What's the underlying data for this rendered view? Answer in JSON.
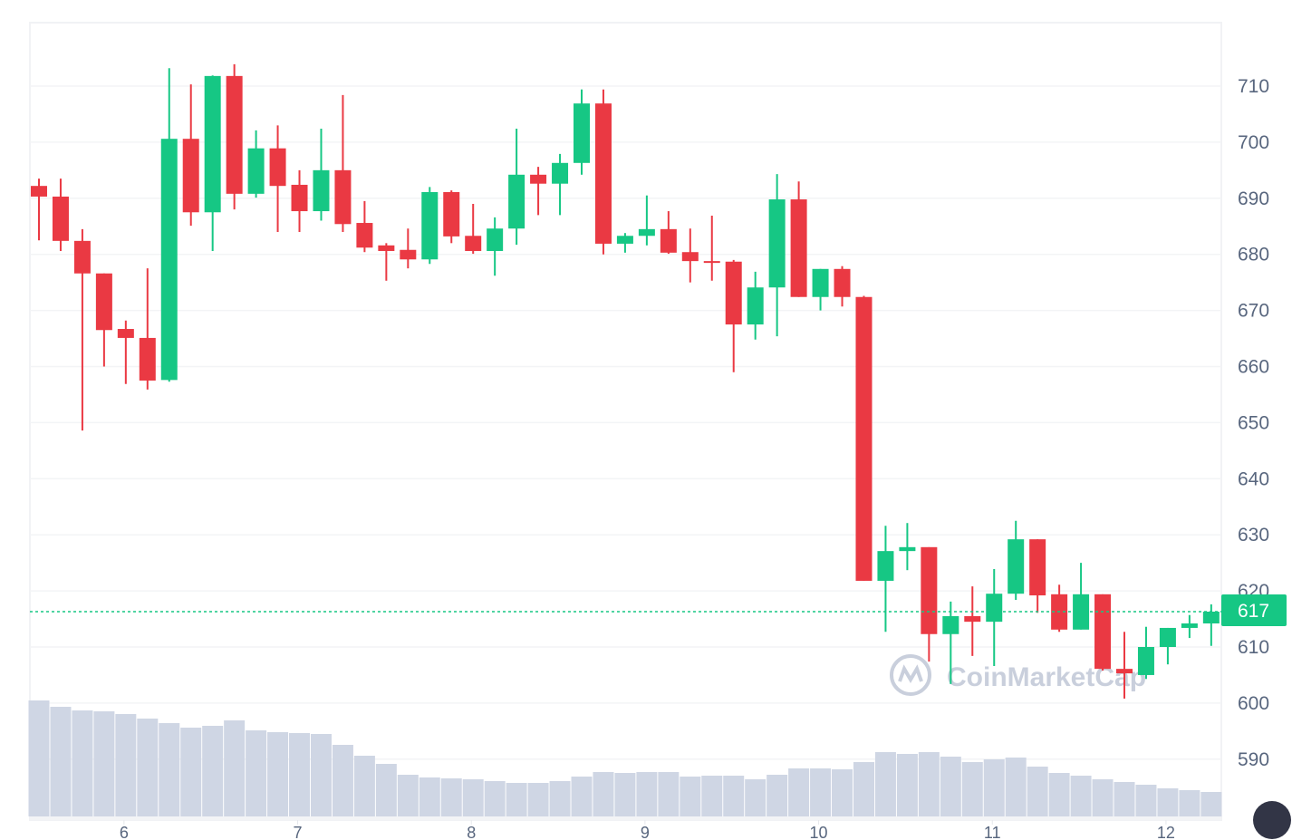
{
  "chart_data": {
    "type": "candlestick",
    "title": "",
    "xlabel": "",
    "ylabel": "",
    "ylim": [
      583,
      720
    ],
    "y_ticks": [
      590,
      600,
      610,
      620,
      630,
      640,
      650,
      660,
      670,
      680,
      690,
      700,
      710
    ],
    "x_tick_labels": [
      "6",
      "7",
      "8",
      "9",
      "10",
      "11",
      "12"
    ],
    "x_tick_candle_index": [
      4,
      12,
      20,
      28,
      36,
      44,
      52
    ],
    "current_price": 617,
    "current_price_label": "617",
    "watermark": "CoinMarketCap",
    "colors": {
      "up": "#16c784",
      "down": "#ea3943",
      "volume": "#cfd6e4",
      "grid": "#f3f4f6",
      "text": "#58667e"
    },
    "candles": [
      [
        692.2,
        693.5,
        682.5,
        690.3
      ],
      [
        690.3,
        693.5,
        680.6,
        682.4
      ],
      [
        682.4,
        684.5,
        648.6,
        676.6
      ],
      [
        676.6,
        676.6,
        660,
        666.5
      ],
      [
        666.7,
        668.2,
        656.9,
        665.1
      ],
      [
        665.1,
        677.5,
        655.9,
        657.5
      ],
      [
        657.6,
        713.2,
        657.3,
        700.6
      ],
      [
        700.6,
        710.3,
        685.1,
        687.5
      ],
      [
        687.5,
        711.9,
        680.6,
        711.8
      ],
      [
        711.8,
        713.9,
        688,
        690.8
      ],
      [
        690.8,
        702.1,
        690.1,
        698.9
      ],
      [
        698.9,
        703,
        684,
        692.2
      ],
      [
        692.4,
        695,
        684,
        687.7
      ],
      [
        687.7,
        702.4,
        686,
        695
      ],
      [
        695,
        708.4,
        684,
        685.4
      ],
      [
        685.6,
        689.5,
        680.4,
        681.2
      ],
      [
        681.6,
        682,
        675.3,
        680.6
      ],
      [
        680.8,
        684.6,
        677.5,
        679.1
      ],
      [
        679.1,
        692,
        678.3,
        691.1
      ],
      [
        691.1,
        691.4,
        682,
        683.2
      ],
      [
        683.3,
        689,
        680.1,
        680.6
      ],
      [
        680.6,
        686.6,
        676.2,
        684.6
      ],
      [
        684.6,
        702.4,
        681.7,
        694.2
      ],
      [
        694.2,
        695.6,
        687,
        692.6
      ],
      [
        692.6,
        697.9,
        687,
        696.3
      ],
      [
        696.3,
        709.4,
        694.2,
        706.9
      ],
      [
        706.9,
        709.4,
        680,
        681.9
      ],
      [
        681.9,
        683.8,
        680.3,
        683.3
      ],
      [
        683.3,
        690.5,
        681.6,
        684.5
      ],
      [
        684.5,
        687.7,
        680.1,
        680.3
      ],
      [
        680.4,
        684.6,
        675,
        678.8
      ],
      [
        678.8,
        686.9,
        675.3,
        678.5
      ],
      [
        678.7,
        679,
        659,
        667.5
      ],
      [
        667.5,
        676.9,
        664.8,
        674.1
      ],
      [
        674.1,
        694.3,
        665.4,
        689.8
      ],
      [
        689.8,
        693,
        672.4,
        672.4
      ],
      [
        672.4,
        677.4,
        670,
        677.4
      ],
      [
        677.4,
        677.9,
        670.7,
        672.4
      ],
      [
        672.4,
        672.6,
        621.8,
        621.8
      ],
      [
        621.8,
        631.6,
        612.7,
        627.1
      ],
      [
        627.1,
        632.1,
        623.7,
        627.8
      ],
      [
        627.8,
        627.8,
        607.4,
        612.3
      ],
      [
        612.3,
        618.1,
        603.4,
        615.5
      ],
      [
        615.5,
        620.8,
        608.4,
        614.5
      ],
      [
        614.5,
        623.9,
        606.6,
        619.5
      ],
      [
        619.5,
        632.5,
        618.4,
        629.2
      ],
      [
        629.2,
        629.2,
        616.1,
        619.2
      ],
      [
        619.4,
        621.1,
        612.7,
        613.1
      ],
      [
        613.1,
        625,
        613.1,
        619.4
      ],
      [
        619.4,
        619.4,
        605.8,
        606.1
      ],
      [
        606.1,
        612.7,
        600.8,
        605.3
      ],
      [
        605,
        613.6,
        604.3,
        610
      ],
      [
        610,
        613.4,
        606.9,
        613.4
      ],
      [
        613.4,
        615.7,
        611.6,
        614.2
      ],
      [
        614.2,
        617.6,
        610.2,
        616.3
      ]
    ],
    "candle_fields": [
      "open",
      "high",
      "low",
      "close"
    ],
    "volume_relative": [
      128,
      121,
      117,
      116,
      113,
      108,
      103,
      98,
      100,
      106,
      95,
      93,
      92,
      91,
      79,
      67,
      58,
      46,
      43,
      42,
      41,
      39,
      37,
      37,
      39,
      44,
      49,
      48,
      49,
      49,
      44,
      45,
      45,
      41,
      46,
      53,
      53,
      52,
      60,
      71,
      69,
      71,
      66,
      60,
      63,
      65,
      55,
      48,
      45,
      41,
      38,
      35,
      31,
      29,
      27
    ]
  }
}
